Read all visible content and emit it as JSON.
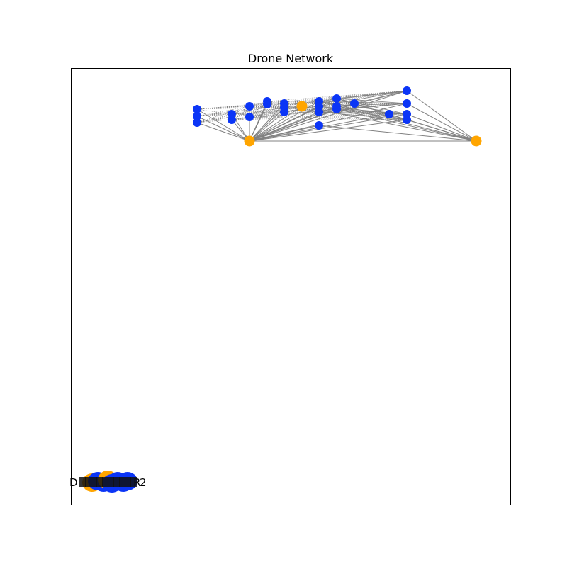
{
  "figure": {
    "title": "Drone Network"
  },
  "colors": {
    "background": "#ffffff",
    "edge": "#808080",
    "drone_node": "#0b35f6",
    "hub_node": "#ffa500",
    "frame": "#000000"
  },
  "node_cluster_labels": [
    "D",
    "2",
    "R"
  ],
  "graph": {
    "nodes": [
      {
        "id": "n1",
        "kind": "drone"
      },
      {
        "id": "n2",
        "kind": "drone"
      },
      {
        "id": "n3",
        "kind": "drone"
      },
      {
        "id": "n4",
        "kind": "drone"
      },
      {
        "id": "n5",
        "kind": "drone"
      },
      {
        "id": "n6",
        "kind": "drone"
      },
      {
        "id": "n7",
        "kind": "drone"
      },
      {
        "id": "n8",
        "kind": "drone"
      },
      {
        "id": "n9",
        "kind": "drone"
      },
      {
        "id": "n10",
        "kind": "drone"
      },
      {
        "id": "n11",
        "kind": "drone"
      },
      {
        "id": "n12",
        "kind": "drone"
      },
      {
        "id": "n13",
        "kind": "drone"
      },
      {
        "id": "n14",
        "kind": "drone"
      },
      {
        "id": "n15",
        "kind": "drone"
      },
      {
        "id": "n16",
        "kind": "drone"
      },
      {
        "id": "n17",
        "kind": "drone"
      },
      {
        "id": "n18",
        "kind": "drone"
      },
      {
        "id": "n19",
        "kind": "drone"
      },
      {
        "id": "n20",
        "kind": "drone"
      },
      {
        "id": "n21",
        "kind": "drone"
      },
      {
        "id": "n22",
        "kind": "drone"
      },
      {
        "id": "n23",
        "kind": "drone"
      },
      {
        "id": "n24",
        "kind": "drone"
      },
      {
        "id": "n25",
        "kind": "drone"
      },
      {
        "id": "h1",
        "kind": "hub"
      },
      {
        "id": "h2",
        "kind": "hub"
      },
      {
        "id": "h3",
        "kind": "hub"
      }
    ]
  }
}
